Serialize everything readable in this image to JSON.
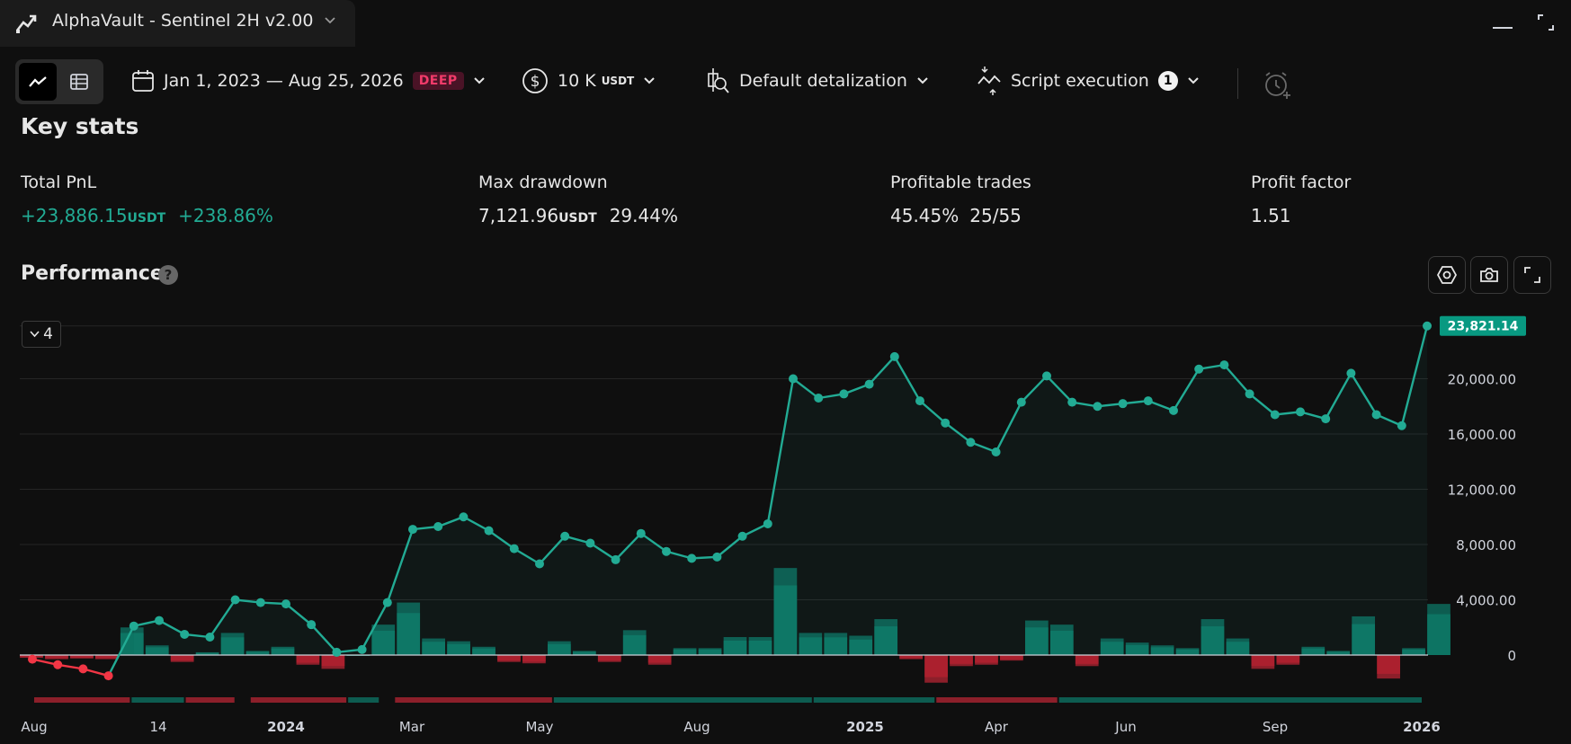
{
  "window": {
    "title": "AlphaVault - Sentinel 2H v2.00"
  },
  "toolbar": {
    "date_range": "Jan 1, 2023 — Aug 25, 2026",
    "deep_badge": "DEEP",
    "capital_value": "10 K",
    "capital_unit": "USDT",
    "detalization": "Default detalization",
    "script_execution": "Script execution",
    "script_execution_count": "1"
  },
  "key_stats": {
    "title": "Key stats",
    "total_pnl": {
      "label": "Total PnL",
      "value": "+23,886.15",
      "unit": "USDT",
      "percent": "+238.86%"
    },
    "max_drawdown": {
      "label": "Max drawdown",
      "value": "7,121.96",
      "unit": "USDT",
      "percent": "29.44%"
    },
    "profitable_trades": {
      "label": "Profitable trades",
      "percent": "45.45%",
      "ratio": "25/55"
    },
    "profit_factor": {
      "label": "Profit factor",
      "value": "1.51"
    }
  },
  "performance": {
    "title": "Performance",
    "help": "?",
    "collapse_count": "4",
    "last_value_label": "23,821.14"
  },
  "colors": {
    "positive": "#22ab94",
    "negative": "#f23645",
    "line": "#22ab94",
    "last_label_bg": "#089981"
  },
  "chart_data": {
    "type": "line",
    "ylim": [
      -1500,
      24500
    ],
    "y_ticks": [
      0,
      4000,
      8000,
      12000,
      16000,
      20000
    ],
    "y_tick_labels": [
      "0",
      "4,000.00",
      "8,000.00",
      "12,000.00",
      "16,000.00",
      "20,000.00"
    ],
    "x_tick_labels": [
      "Aug",
      "14",
      "2024",
      "Mar",
      "May",
      "Aug",
      "2025",
      "Apr",
      "Jun",
      "Sep",
      "2026"
    ],
    "grid": true,
    "series": [
      {
        "values": [
          -300,
          -700,
          -1000,
          -1500,
          2100,
          2500,
          1500,
          1300,
          4000,
          3800,
          3700,
          2200,
          200,
          400,
          3800,
          9100,
          9300,
          10000,
          9000,
          7700,
          6600,
          8600,
          8100,
          6900,
          8800,
          7500,
          7000,
          7100,
          8600,
          9500,
          20000,
          18600,
          18900,
          19600,
          21600,
          18400,
          16800,
          15400,
          14700,
          18300,
          20200,
          18300,
          18000,
          18200,
          18400,
          17700,
          20700,
          21000,
          18900,
          17400,
          17600,
          17100,
          20400,
          17400,
          16600,
          23821.14
        ]
      }
    ],
    "bars": [
      {
        "values": [
          -200,
          -300,
          -250,
          -300,
          2000,
          700,
          -500,
          200,
          1600,
          300,
          600,
          -700,
          -1000,
          0,
          2200,
          3800,
          1200,
          1000,
          600,
          -500,
          -600,
          1000,
          300,
          -500,
          1800,
          -700,
          500,
          500,
          1300,
          1300,
          6300,
          1600,
          1600,
          1400,
          2600,
          -300,
          -2000,
          -800,
          -700,
          -400,
          2500,
          2200,
          -800,
          1200,
          900,
          700,
          500,
          2600,
          1200,
          -1000,
          -700,
          600,
          300,
          2800,
          -1700,
          500,
          3700
        ]
      }
    ],
    "trade_bands": [
      {
        "from": 0,
        "to": 0.27,
        "sign": "negative"
      },
      {
        "from": 0.27,
        "to": 0.42,
        "sign": "positive"
      },
      {
        "from": 0.42,
        "to": 0.56,
        "sign": "negative"
      },
      {
        "from": 0.6,
        "to": 0.87,
        "sign": "negative"
      },
      {
        "from": 0.87,
        "to": 0.96,
        "sign": "positive"
      },
      {
        "from": 1.0,
        "to": 1.44,
        "sign": "negative"
      },
      {
        "from": 1.44,
        "to": 2.16,
        "sign": "positive"
      },
      {
        "from": 2.16,
        "to": 2.5,
        "sign": "positive"
      },
      {
        "from": 2.5,
        "to": 2.84,
        "sign": "negative"
      },
      {
        "from": 2.84,
        "to": 3.85,
        "sign": "positive"
      }
    ]
  }
}
